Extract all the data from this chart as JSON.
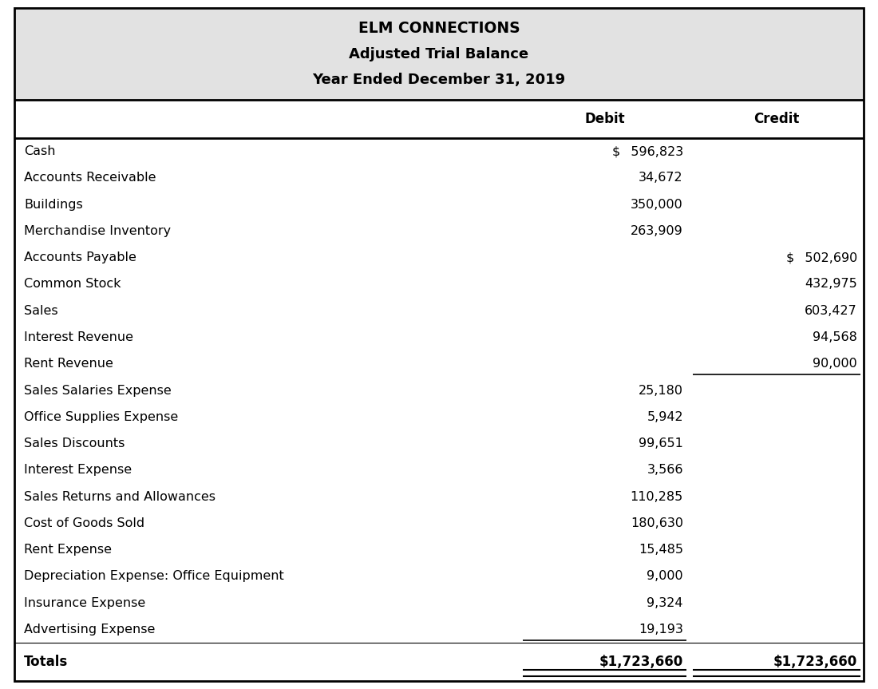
{
  "title_line1": "ELM CONNECTIONS",
  "title_line2": "Adjusted Trial Balance",
  "title_line3": "Year Ended December 31, 2019",
  "header_debit": "Debit",
  "header_credit": "Credit",
  "rows": [
    {
      "account": "Cash",
      "debit": "$  596,823",
      "credit": "",
      "underline_debit": false,
      "underline_credit": false
    },
    {
      "account": "Accounts Receivable",
      "debit": "34,672",
      "credit": "",
      "underline_debit": false,
      "underline_credit": false
    },
    {
      "account": "Buildings",
      "debit": "350,000",
      "credit": "",
      "underline_debit": false,
      "underline_credit": false
    },
    {
      "account": "Merchandise Inventory",
      "debit": "263,909",
      "credit": "",
      "underline_debit": false,
      "underline_credit": false
    },
    {
      "account": "Accounts Payable",
      "debit": "",
      "credit": "$  502,690",
      "underline_debit": false,
      "underline_credit": false
    },
    {
      "account": "Common Stock",
      "debit": "",
      "credit": "432,975",
      "underline_debit": false,
      "underline_credit": false
    },
    {
      "account": "Sales",
      "debit": "",
      "credit": "603,427",
      "underline_debit": false,
      "underline_credit": false
    },
    {
      "account": "Interest Revenue",
      "debit": "",
      "credit": "94,568",
      "underline_debit": false,
      "underline_credit": false
    },
    {
      "account": "Rent Revenue",
      "debit": "",
      "credit": "90,000",
      "underline_debit": false,
      "underline_credit": true
    },
    {
      "account": "Sales Salaries Expense",
      "debit": "25,180",
      "credit": "",
      "underline_debit": false,
      "underline_credit": false
    },
    {
      "account": "Office Supplies Expense",
      "debit": "5,942",
      "credit": "",
      "underline_debit": false,
      "underline_credit": false
    },
    {
      "account": "Sales Discounts",
      "debit": "99,651",
      "credit": "",
      "underline_debit": false,
      "underline_credit": false
    },
    {
      "account": "Interest Expense",
      "debit": "3,566",
      "credit": "",
      "underline_debit": false,
      "underline_credit": false
    },
    {
      "account": "Sales Returns and Allowances",
      "debit": "110,285",
      "credit": "",
      "underline_debit": false,
      "underline_credit": false
    },
    {
      "account": "Cost of Goods Sold",
      "debit": "180,630",
      "credit": "",
      "underline_debit": false,
      "underline_credit": false
    },
    {
      "account": "Rent Expense",
      "debit": "15,485",
      "credit": "",
      "underline_debit": false,
      "underline_credit": false
    },
    {
      "account": "Depreciation Expense: Office Equipment",
      "debit": "9,000",
      "credit": "",
      "underline_debit": false,
      "underline_credit": false
    },
    {
      "account": "Insurance Expense",
      "debit": "9,324",
      "credit": "",
      "underline_debit": false,
      "underline_credit": false
    },
    {
      "account": "Advertising Expense",
      "debit": "19,193",
      "credit": "",
      "underline_debit": true,
      "underline_credit": false
    }
  ],
  "totals_label": "Totals",
  "totals_debit": "$1,723,660",
  "totals_credit": "$1,723,660",
  "bg_header": "#e2e2e2",
  "bg_table": "#ffffff",
  "border_color": "#000000",
  "text_color": "#000000",
  "figwidth": 11.0,
  "figheight": 8.63,
  "dpi": 100
}
